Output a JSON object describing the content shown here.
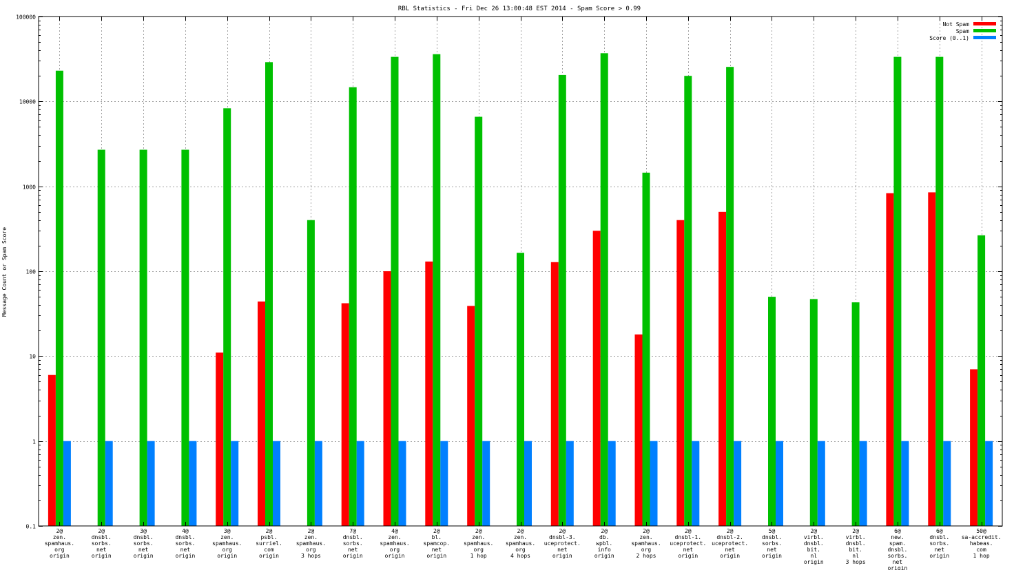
{
  "chart_data": {
    "type": "bar",
    "title": "RBL Statistics - Fri Dec 26 13:00:48 EST 2014 - Spam Score > 0.99",
    "xlabel": "",
    "ylabel": "Message Count or Spam Score",
    "yscale": "log",
    "ylim": [
      0.1,
      100000
    ],
    "y_ticks": [
      0.1,
      1,
      10,
      100,
      1000,
      10000,
      100000
    ],
    "y_tick_labels": [
      "0.1",
      "1",
      "10",
      "100",
      "1000",
      "10000",
      "100000"
    ],
    "grid": true,
    "legend_position": "top-right",
    "categories": [
      [
        "2@",
        "zen.",
        "spamhaus.",
        "org",
        "origin"
      ],
      [
        "2@",
        "dnsbl.",
        "sorbs.",
        "net",
        "origin"
      ],
      [
        "3@",
        "dnsbl.",
        "sorbs.",
        "net",
        "origin"
      ],
      [
        "4@",
        "dnsbl.",
        "sorbs.",
        "net",
        "origin"
      ],
      [
        "3@",
        "zen.",
        "spamhaus.",
        "org",
        "origin"
      ],
      [
        "2@",
        "psbl.",
        "surriel.",
        "com",
        "origin"
      ],
      [
        "2@",
        "zen.",
        "spamhaus.",
        "org",
        "3 hops"
      ],
      [
        "7@",
        "dnsbl.",
        "sorbs.",
        "net",
        "origin"
      ],
      [
        "4@",
        "zen.",
        "spamhaus.",
        "org",
        "origin"
      ],
      [
        "2@",
        "bl.",
        "spamcop.",
        "net",
        "origin"
      ],
      [
        "2@",
        "zen.",
        "spamhaus.",
        "org",
        "1 hop"
      ],
      [
        "2@",
        "zen.",
        "spamhaus.",
        "org",
        "4 hops"
      ],
      [
        "2@",
        "dnsbl-3.",
        "uceprotect.",
        "net",
        "origin"
      ],
      [
        "2@",
        "db.",
        "wpbl.",
        "info",
        "origin"
      ],
      [
        "2@",
        "zen.",
        "spamhaus.",
        "org",
        "2 hops"
      ],
      [
        "2@",
        "dnsbl-1.",
        "uceprotect.",
        "net",
        "origin"
      ],
      [
        "2@",
        "dnsbl-2.",
        "uceprotect.",
        "net",
        "origin"
      ],
      [
        "5@",
        "dnsbl.",
        "sorbs.",
        "net",
        "origin"
      ],
      [
        "2@",
        "virbl.",
        "dnsbl.",
        "bit.",
        "nl",
        "origin"
      ],
      [
        "2@",
        "virbl.",
        "dnsbl.",
        "bit.",
        "nl",
        "3 hops"
      ],
      [
        "6@",
        "new.",
        "spam.",
        "dnsbl.",
        "sorbs.",
        "net",
        "origin"
      ],
      [
        "6@",
        "dnsbl.",
        "sorbs.",
        "net",
        "origin"
      ],
      [
        "50@",
        "sa-accredit.",
        "habeas.",
        "com",
        "1 hop"
      ]
    ],
    "series": [
      {
        "name": "Not Spam",
        "color": "#ff0000",
        "values": [
          6,
          null,
          null,
          null,
          11,
          44,
          null,
          42,
          100,
          130,
          39,
          null,
          128,
          300,
          18,
          400,
          500,
          null,
          null,
          null,
          830,
          850,
          7
        ]
      },
      {
        "name": "Spam",
        "color": "#00c000",
        "values": [
          23000,
          2700,
          2700,
          2700,
          8300,
          29000,
          400,
          14700,
          33500,
          36000,
          6600,
          165,
          20500,
          37000,
          1450,
          20000,
          25500,
          50,
          47,
          43,
          33500,
          33500,
          265
        ]
      },
      {
        "name": "Score (0..1)",
        "color": "#0080ff",
        "values": [
          1,
          1,
          1,
          1,
          1,
          1,
          1,
          1,
          1,
          1,
          1,
          1,
          1,
          1,
          1,
          1,
          1,
          1,
          1,
          1,
          1,
          1,
          1
        ]
      }
    ]
  }
}
